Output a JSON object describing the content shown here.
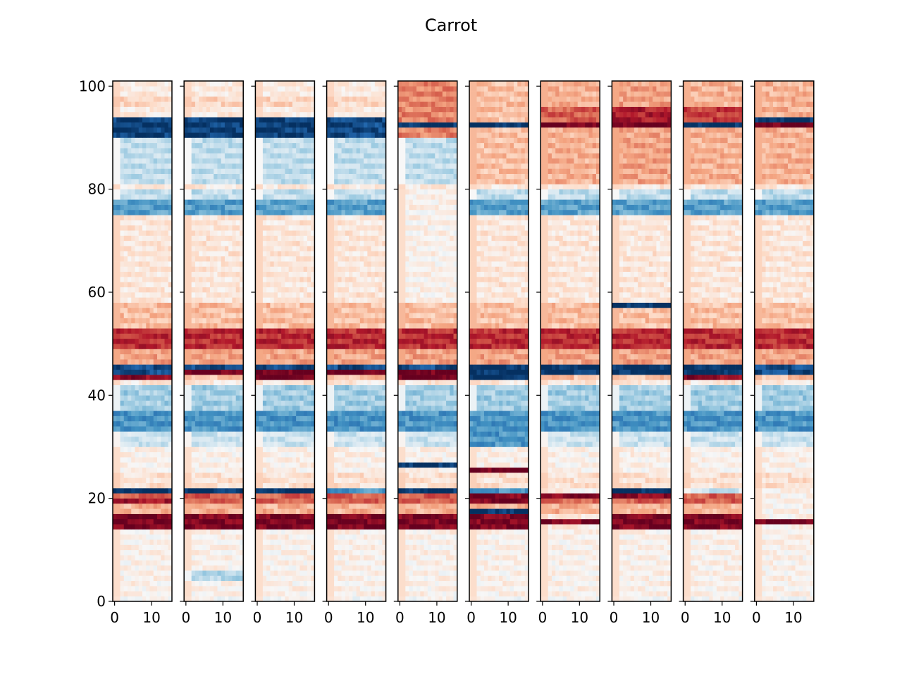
{
  "chart_data": {
    "type": "heatmap",
    "title": "Carrot",
    "colormap": "RdBu_r",
    "colormap_stops": [
      "#053061",
      "#2166ac",
      "#4393c3",
      "#92c5de",
      "#d1e5f0",
      "#f7f7f7",
      "#fddbc7",
      "#f4a582",
      "#d6604d",
      "#b2182b",
      "#67001f"
    ],
    "frame_color": "#000000",
    "panel_count": 10,
    "x_range": [
      0,
      16
    ],
    "y_range": [
      0,
      101
    ],
    "x_ticks": [
      0,
      10
    ],
    "y_ticks": [
      0,
      20,
      40,
      60,
      80,
      100
    ],
    "shared_y_axis": true,
    "value_range": [
      -1,
      1
    ],
    "base_profile": [
      [
        0,
        1,
        0.0
      ],
      [
        1,
        14,
        0.05
      ],
      [
        14,
        17,
        0.95
      ],
      [
        17,
        19,
        0.35
      ],
      [
        19,
        21,
        0.6
      ],
      [
        21,
        22,
        -1.0
      ],
      [
        22,
        25,
        0.15
      ],
      [
        25,
        30,
        0.05
      ],
      [
        30,
        33,
        -0.2
      ],
      [
        33,
        37,
        -0.6
      ],
      [
        37,
        42,
        -0.35
      ],
      [
        42,
        43,
        0.1
      ],
      [
        43,
        44,
        0.3
      ],
      [
        44,
        46,
        -0.9
      ],
      [
        46,
        49,
        0.4
      ],
      [
        49,
        53,
        0.75
      ],
      [
        53,
        58,
        0.3
      ],
      [
        58,
        75,
        0.12
      ],
      [
        75,
        78,
        -0.55
      ],
      [
        78,
        80,
        -0.25
      ],
      [
        80,
        81,
        0.1
      ],
      [
        81,
        90,
        -0.25
      ],
      [
        90,
        94,
        -0.95
      ],
      [
        94,
        96,
        0.1
      ],
      [
        96,
        98,
        0.2
      ],
      [
        98,
        101,
        0.1
      ]
    ],
    "panels": [
      {
        "name": "panel-1",
        "bands": [
          [
            43,
            44,
            0.9
          ],
          [
            19,
            20,
            0.85
          ]
        ]
      },
      {
        "name": "panel-2",
        "bands": [
          [
            44,
            45,
            1.0
          ],
          [
            4,
            6,
            -0.3
          ]
        ]
      },
      {
        "name": "panel-3",
        "bands": [
          [
            43,
            45,
            1.0
          ]
        ]
      },
      {
        "name": "panel-4",
        "bands": [
          [
            44,
            45,
            1.0
          ],
          [
            21,
            22,
            -0.6
          ],
          [
            90,
            94,
            -0.9
          ]
        ]
      },
      {
        "name": "panel-5",
        "bands": [
          [
            43,
            45,
            1.0
          ],
          [
            26,
            27,
            -1.0
          ],
          [
            90,
            101,
            0.5
          ],
          [
            92,
            93,
            -1.0
          ],
          [
            58,
            80,
            0.05
          ]
        ]
      },
      {
        "name": "panel-6",
        "bands": [
          [
            43,
            46,
            -1.0
          ],
          [
            25,
            26,
            1.0
          ],
          [
            20,
            21,
            0.95
          ],
          [
            19,
            20,
            0.95
          ],
          [
            17,
            18,
            -1.0
          ],
          [
            21,
            22,
            -0.6
          ],
          [
            81,
            101,
            0.3
          ],
          [
            92,
            93,
            -1.0
          ],
          [
            30,
            37,
            -0.6
          ]
        ]
      },
      {
        "name": "panel-7",
        "bands": [
          [
            44,
            46,
            -1.0
          ],
          [
            20,
            21,
            0.95
          ],
          [
            15,
            16,
            0.95
          ],
          [
            14,
            15,
            0.1
          ],
          [
            16,
            17,
            0.1
          ],
          [
            81,
            101,
            0.35
          ],
          [
            92,
            93,
            1.0
          ],
          [
            93,
            96,
            0.6
          ],
          [
            21,
            22,
            0.05
          ]
        ]
      },
      {
        "name": "panel-8",
        "bands": [
          [
            44,
            46,
            -1.0
          ],
          [
            20,
            21,
            0.9
          ],
          [
            81,
            101,
            0.4
          ],
          [
            92,
            93,
            1.0
          ],
          [
            93,
            96,
            0.8
          ],
          [
            57,
            58,
            -1.0
          ]
        ]
      },
      {
        "name": "panel-9",
        "bands": [
          [
            44,
            46,
            -1.0
          ],
          [
            43,
            44,
            0.9
          ],
          [
            81,
            101,
            0.35
          ],
          [
            92,
            93,
            -1.0
          ],
          [
            93,
            96,
            0.7
          ],
          [
            21,
            22,
            -0.2
          ]
        ]
      },
      {
        "name": "panel-10",
        "bands": [
          [
            44,
            46,
            -0.9
          ],
          [
            15,
            16,
            1.0
          ],
          [
            14,
            15,
            0.05
          ],
          [
            16,
            21,
            0.05
          ],
          [
            21,
            22,
            0.05
          ],
          [
            81,
            101,
            0.35
          ],
          [
            92,
            94,
            1.0
          ],
          [
            93,
            94,
            -1.0
          ]
        ]
      }
    ]
  }
}
